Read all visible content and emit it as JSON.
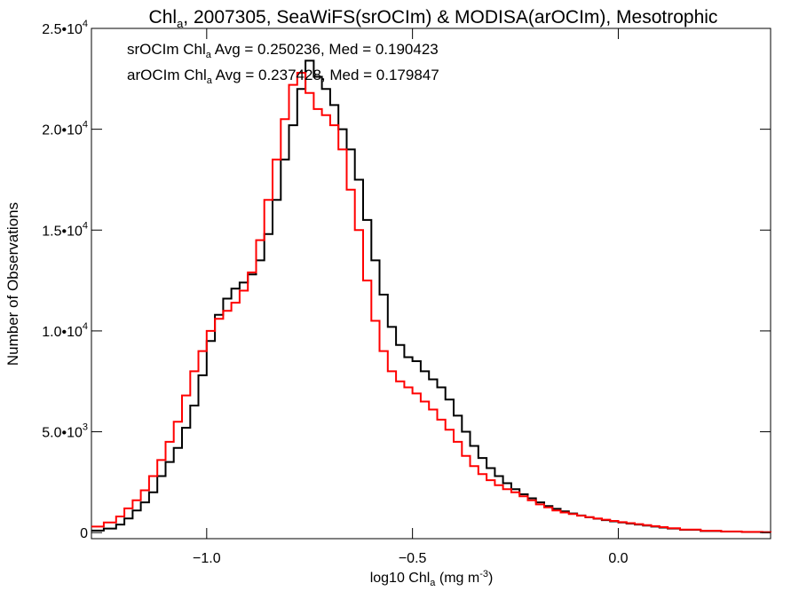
{
  "chart_data": {
    "type": "line",
    "title": {
      "prefix": "Chl",
      "sub": "a",
      "suffix": ", 2007305, SeaWiFS(srOCIm) & MODISA(arOCIm), Mesotrophic"
    },
    "xlabel": {
      "prefix": "log10 Chl",
      "sub": "a",
      "suffix": " (mg m",
      "sup": "-3",
      "end": ")"
    },
    "ylabel": "Number of Observations",
    "xlim": [
      -1.28,
      0.37
    ],
    "ylim": [
      -300,
      25000
    ],
    "xticks": [
      {
        "value": -1.0,
        "label": "−1.0"
      },
      {
        "value": -0.5,
        "label": "−0.5"
      },
      {
        "value": 0.0,
        "label": "0.0"
      }
    ],
    "yticks": [
      {
        "value": 0,
        "mant": "0",
        "exp": ""
      },
      {
        "value": 5000,
        "mant": "5.0•10",
        "exp": "3"
      },
      {
        "value": 10000,
        "mant": "1.0•10",
        "exp": "4"
      },
      {
        "value": 15000,
        "mant": "1.5•10",
        "exp": "4"
      },
      {
        "value": 20000,
        "mant": "2.0•10",
        "exp": "4"
      },
      {
        "value": 25000,
        "mant": "2.5•10",
        "exp": "4"
      }
    ],
    "grid": false,
    "annotations": [
      {
        "prefix": "srOCIm Chl",
        "sub": "a",
        "suffix": " Avg = 0.250236, Med = 0.190423",
        "color": "#000000"
      },
      {
        "prefix": "arOCIm Chl",
        "sub": "a",
        "suffix": " Avg = 0.237428, Med = 0.179847",
        "color": "#ff0000"
      }
    ],
    "series": [
      {
        "color": "#000000",
        "x": [
          -1.28,
          -1.25,
          -1.22,
          -1.2,
          -1.18,
          -1.16,
          -1.14,
          -1.12,
          -1.1,
          -1.08,
          -1.06,
          -1.04,
          -1.02,
          -1.0,
          -0.98,
          -0.96,
          -0.94,
          -0.92,
          -0.9,
          -0.88,
          -0.86,
          -0.84,
          -0.82,
          -0.8,
          -0.78,
          -0.76,
          -0.74,
          -0.72,
          -0.7,
          -0.68,
          -0.66,
          -0.64,
          -0.62,
          -0.6,
          -0.58,
          -0.56,
          -0.54,
          -0.52,
          -0.5,
          -0.48,
          -0.46,
          -0.44,
          -0.42,
          -0.4,
          -0.38,
          -0.36,
          -0.34,
          -0.32,
          -0.3,
          -0.28,
          -0.26,
          -0.24,
          -0.22,
          -0.2,
          -0.18,
          -0.16,
          -0.14,
          -0.12,
          -0.1,
          -0.08,
          -0.06,
          -0.04,
          -0.02,
          0.0,
          0.02,
          0.04,
          0.06,
          0.08,
          0.1,
          0.12,
          0.15,
          0.2,
          0.25,
          0.3,
          0.35,
          0.37
        ],
        "y": [
          100,
          200,
          400,
          700,
          1100,
          1500,
          2000,
          2800,
          3500,
          4200,
          5200,
          6300,
          7800,
          9500,
          10800,
          11600,
          12100,
          12400,
          12800,
          13500,
          14800,
          16500,
          18500,
          20200,
          22000,
          23400,
          22600,
          22000,
          21200,
          20000,
          19000,
          17500,
          15500,
          13500,
          11800,
          10200,
          9300,
          8700,
          8500,
          8000,
          7600,
          7200,
          6600,
          5800,
          5000,
          4300,
          3700,
          3200,
          2800,
          2450,
          2150,
          1900,
          1700,
          1500,
          1320,
          1180,
          1050,
          950,
          850,
          760,
          690,
          620,
          560,
          500,
          450,
          400,
          350,
          300,
          250,
          200,
          140,
          80,
          50,
          30,
          20,
          10
        ]
      },
      {
        "color": "#ff0000",
        "x": [
          -1.28,
          -1.25,
          -1.22,
          -1.2,
          -1.18,
          -1.16,
          -1.14,
          -1.12,
          -1.1,
          -1.08,
          -1.06,
          -1.04,
          -1.02,
          -1.0,
          -0.98,
          -0.96,
          -0.94,
          -0.92,
          -0.9,
          -0.88,
          -0.86,
          -0.84,
          -0.82,
          -0.8,
          -0.78,
          -0.76,
          -0.74,
          -0.72,
          -0.7,
          -0.68,
          -0.66,
          -0.64,
          -0.62,
          -0.6,
          -0.58,
          -0.56,
          -0.54,
          -0.52,
          -0.5,
          -0.48,
          -0.46,
          -0.44,
          -0.42,
          -0.4,
          -0.38,
          -0.36,
          -0.34,
          -0.32,
          -0.3,
          -0.28,
          -0.26,
          -0.24,
          -0.22,
          -0.2,
          -0.18,
          -0.16,
          -0.14,
          -0.12,
          -0.1,
          -0.08,
          -0.06,
          -0.04,
          -0.02,
          0.0,
          0.02,
          0.04,
          0.06,
          0.08,
          0.1,
          0.12,
          0.15,
          0.2,
          0.25,
          0.3,
          0.35,
          0.37
        ],
        "y": [
          300,
          500,
          800,
          1200,
          1600,
          2100,
          2800,
          3600,
          4500,
          5500,
          6800,
          8000,
          9000,
          10000,
          10600,
          11000,
          11400,
          12000,
          12900,
          14500,
          16500,
          18500,
          20500,
          22200,
          22800,
          21800,
          21000,
          20700,
          20200,
          19000,
          17000,
          15000,
          12500,
          10500,
          9000,
          8000,
          7500,
          7200,
          6900,
          6500,
          6100,
          5600,
          5100,
          4500,
          3800,
          3300,
          2900,
          2600,
          2350,
          2150,
          2000,
          1800,
          1600,
          1400,
          1250,
          1100,
          1000,
          920,
          840,
          770,
          700,
          640,
          580,
          520,
          470,
          420,
          370,
          320,
          270,
          220,
          150,
          90,
          55,
          35,
          20,
          10
        ]
      }
    ]
  }
}
